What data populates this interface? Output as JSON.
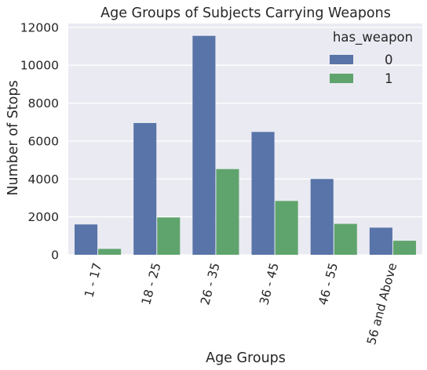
{
  "chart_data": {
    "type": "bar",
    "title": "Age Groups of Subjects Carrying Weapons",
    "xlabel": "Age Groups",
    "ylabel": "Number of Stops",
    "categories": [
      "1 - 17",
      "18 - 25",
      "26 - 35",
      "36 - 45",
      "46 - 55",
      "56 and Above"
    ],
    "series": [
      {
        "name": "0",
        "values": [
          1600,
          6950,
          11550,
          6480,
          4000,
          1430
        ],
        "color": "#5874a8"
      },
      {
        "name": "1",
        "values": [
          310,
          1970,
          4520,
          2840,
          1630,
          740
        ],
        "color": "#5fa46d"
      }
    ],
    "ylim": [
      0,
      12200
    ],
    "yticks": [
      0,
      2000,
      4000,
      6000,
      8000,
      10000,
      12000
    ],
    "grid": true,
    "background_color": "#eaeaf2",
    "grid_color": "#ffffff",
    "legend": {
      "title": "has_weapon",
      "placement": "top-right"
    }
  }
}
